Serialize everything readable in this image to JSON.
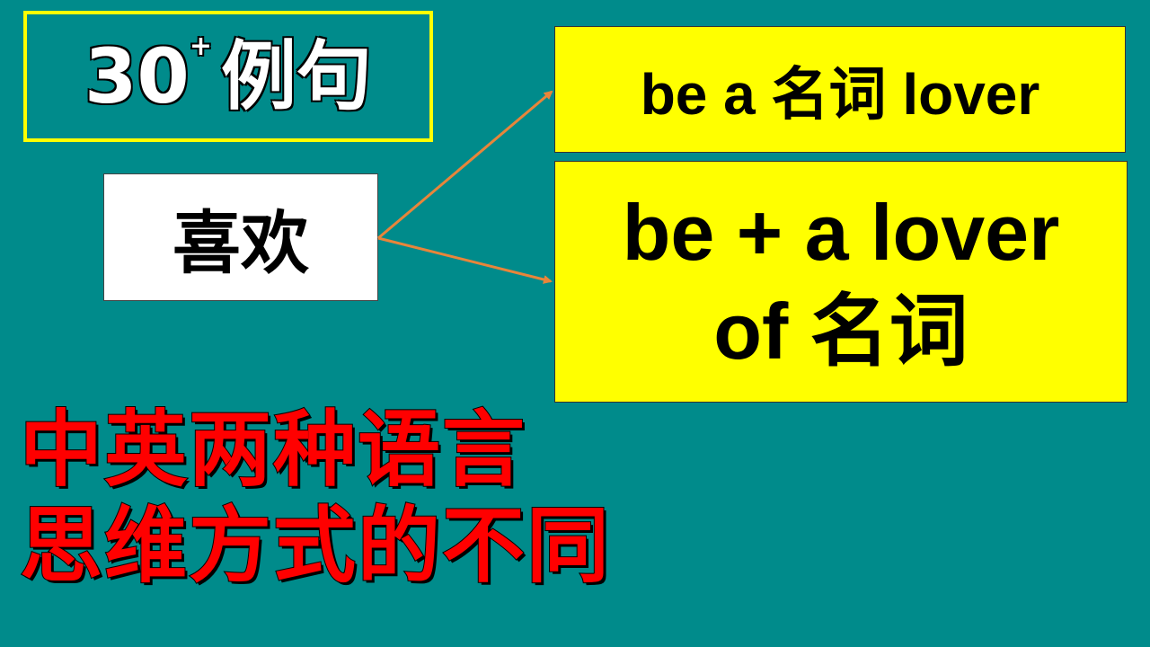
{
  "badge": {
    "number": "30",
    "superscript": "+",
    "label": "例句"
  },
  "keyword": "喜欢",
  "patterns": {
    "top": "be a 名词 lover",
    "bottom_line1": "be + a lover",
    "bottom_line2": "of 名词"
  },
  "caption": {
    "line1": "中英两种语言",
    "line2": "思维方式的不同"
  },
  "colors": {
    "background": "#008b8b",
    "box_yellow": "#ffff00",
    "arrow": "#e8853a",
    "caption_red": "#ff0000"
  }
}
